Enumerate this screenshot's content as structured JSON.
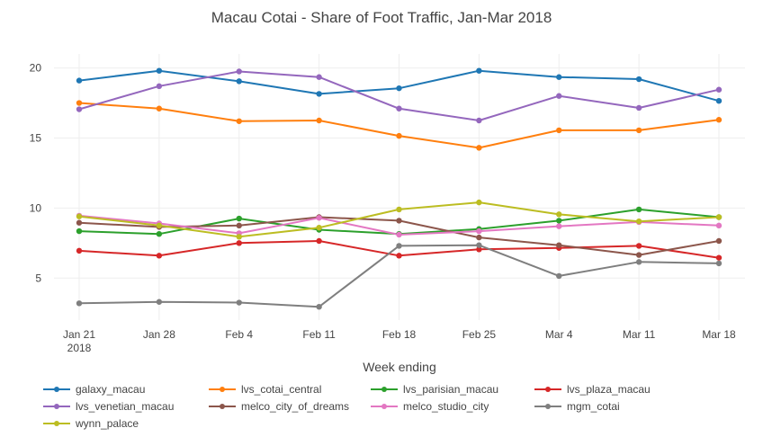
{
  "chart_data": {
    "type": "line",
    "title": "Macau Cotai - Share of Foot Traffic, Jan-Mar 2018",
    "xlabel": "Week ending",
    "ylabel": "",
    "x": [
      "Jan 21\n2018",
      "Jan 28",
      "Feb 4",
      "Feb 11",
      "Feb 18",
      "Feb 25",
      "Mar 4",
      "Mar 11",
      "Mar 18"
    ],
    "ylim": [
      2,
      21
    ],
    "yticks": [
      5,
      10,
      15,
      20
    ],
    "grid": true,
    "legend_position": "bottom",
    "series": [
      {
        "name": "galaxy_macau",
        "color": "#1f77b4",
        "values": [
          19.1,
          19.8,
          19.05,
          18.15,
          18.55,
          19.8,
          19.35,
          19.2,
          17.65
        ]
      },
      {
        "name": "lvs_cotai_central",
        "color": "#ff7f0e",
        "values": [
          17.5,
          17.1,
          16.2,
          16.25,
          15.15,
          14.3,
          15.55,
          15.55,
          16.3
        ]
      },
      {
        "name": "lvs_parisian_macau",
        "color": "#2ca02c",
        "values": [
          8.35,
          8.15,
          9.25,
          8.45,
          8.15,
          8.5,
          9.1,
          9.9,
          9.35
        ]
      },
      {
        "name": "lvs_plaza_macau",
        "color": "#d62728",
        "values": [
          6.95,
          6.6,
          7.5,
          7.65,
          6.6,
          7.05,
          7.15,
          7.3,
          6.45
        ]
      },
      {
        "name": "lvs_venetian_macau",
        "color": "#9467bd",
        "values": [
          17.05,
          18.7,
          19.75,
          19.35,
          17.1,
          16.25,
          18.0,
          17.15,
          18.45
        ]
      },
      {
        "name": "melco_city_of_dreams",
        "color": "#8c564b",
        "values": [
          8.95,
          8.65,
          8.75,
          9.35,
          9.1,
          7.9,
          7.35,
          6.65,
          7.65
        ]
      },
      {
        "name": "melco_studio_city",
        "color": "#e377c2",
        "values": [
          9.45,
          8.9,
          8.2,
          9.3,
          8.1,
          8.35,
          8.7,
          9.0,
          8.75
        ]
      },
      {
        "name": "mgm_cotai",
        "color": "#7f7f7f",
        "values": [
          3.2,
          3.3,
          3.25,
          2.95,
          7.3,
          7.35,
          5.15,
          6.15,
          6.05
        ]
      },
      {
        "name": "wynn_palace",
        "color": "#bcbd22",
        "values": [
          9.4,
          8.75,
          7.95,
          8.6,
          9.9,
          10.4,
          9.55,
          9.05,
          9.35
        ]
      }
    ]
  }
}
